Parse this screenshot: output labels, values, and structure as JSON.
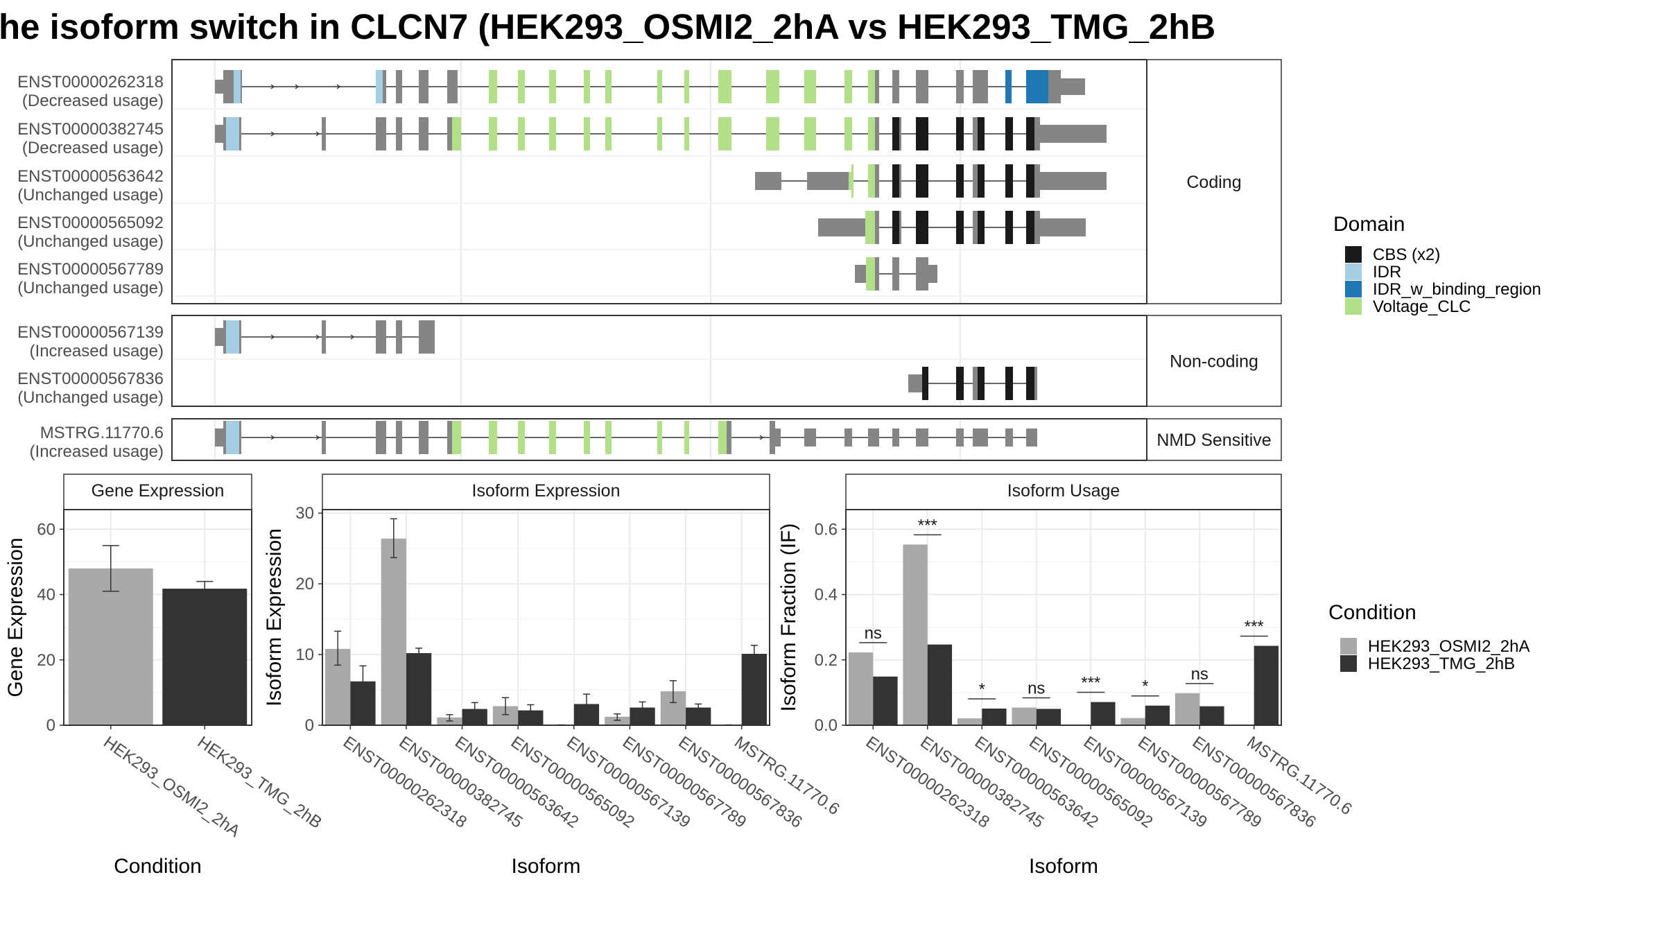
{
  "title": "he isoform switch in CLCN7 (HEK293_OSMI2_2hA vs HEK293_TMG_2hB",
  "colors": {
    "cond_a": "#a9a9a9",
    "cond_b": "#333333",
    "exon": "#858585",
    "strip_bg": "#ffffff",
    "panel_border": "#333333",
    "grid": "#ebebeb"
  },
  "structure": {
    "groups": [
      {
        "label": "Coding",
        "isoforms": [
          {
            "id": "ENST00000262318",
            "usage": "(Decreased usage)",
            "track": "t262318"
          },
          {
            "id": "ENST00000382745",
            "usage": "(Decreased usage)",
            "track": "t382745"
          },
          {
            "id": "ENST00000563642",
            "usage": "(Unchanged usage)",
            "track": "t563642"
          },
          {
            "id": "ENST00000565092",
            "usage": "(Unchanged usage)",
            "track": "t565092"
          },
          {
            "id": "ENST00000567789",
            "usage": "(Unchanged usage)",
            "track": "t567789"
          }
        ]
      },
      {
        "label": "Non-coding",
        "isoforms": [
          {
            "id": "ENST00000567139",
            "usage": "(Increased usage)",
            "track": "t567139"
          },
          {
            "id": "ENST00000567836",
            "usage": "(Unchanged usage)",
            "track": "t567836"
          }
        ]
      },
      {
        "label": "NMD Sensitive",
        "isoforms": [
          {
            "id": "MSTRG.11770.6",
            "usage": "(Increased usage)",
            "track": "tMSTRG"
          }
        ]
      }
    ]
  },
  "legend_domain": {
    "title": "Domain",
    "items": [
      {
        "label": "CBS (x2)",
        "color": "#1a1a1a"
      },
      {
        "label": "IDR",
        "color": "#a6cee3"
      },
      {
        "label": "IDR_w_binding_region",
        "color": "#1f78b4"
      },
      {
        "label": "Voltage_CLC",
        "color": "#b2df8a"
      }
    ]
  },
  "legend_condition": {
    "title": "Condition",
    "items": [
      {
        "label": "HEK293_OSMI2_2hA",
        "color": "#a9a9a9"
      },
      {
        "label": "HEK293_TMG_2hB",
        "color": "#333333"
      }
    ]
  },
  "chart_data": [
    {
      "type": "bar",
      "title": "Gene Expression",
      "xlabel": "Condition",
      "ylabel": "Gene Expression",
      "ylim": [
        0,
        66
      ],
      "yticks": [
        0,
        20,
        40,
        60
      ],
      "categories": [
        "HEK293_OSMI2_2hA",
        "HEK293_TMG_2hB"
      ],
      "values": [
        48,
        41.8
      ],
      "errors": [
        [
          41,
          55
        ],
        [
          39.5,
          44
        ]
      ],
      "colors": [
        "#a9a9a9",
        "#333333"
      ]
    },
    {
      "type": "bar",
      "title": "Isoform Expression",
      "xlabel": "Isoform",
      "ylabel": "Isoform Expression",
      "ylim": [
        0,
        30.5
      ],
      "yticks": [
        0,
        10,
        20,
        30
      ],
      "categories": [
        "ENST00000262318",
        "ENST00000382745",
        "ENST00000563642",
        "ENST00000565092",
        "ENST00000567139",
        "ENST00000567789",
        "ENST00000567836",
        "MSTRG.11770.6"
      ],
      "series": [
        {
          "name": "HEK293_OSMI2_2hA",
          "values": [
            10.8,
            26.4,
            1.1,
            2.7,
            0.02,
            1.2,
            4.8,
            0.02
          ],
          "errors": [
            [
              8.5,
              13.3
            ],
            [
              23.7,
              29.2
            ],
            [
              0.6,
              1.5
            ],
            [
              1.5,
              3.9
            ],
            [
              0.0,
              0.05
            ],
            [
              0.7,
              1.6
            ],
            [
              3.2,
              6.3
            ],
            [
              0.0,
              0.05
            ]
          ]
        },
        {
          "name": "HEK293_TMG_2hB",
          "values": [
            6.2,
            10.2,
            2.3,
            2.1,
            3.0,
            2.5,
            2.5,
            10.1
          ],
          "errors": [
            [
              4.1,
              8.4
            ],
            [
              9.5,
              10.9
            ],
            [
              1.4,
              3.2
            ],
            [
              1.4,
              2.9
            ],
            [
              1.6,
              4.4
            ],
            [
              1.7,
              3.3
            ],
            [
              2.0,
              3.0
            ],
            [
              9.0,
              11.3
            ]
          ]
        }
      ]
    },
    {
      "type": "bar",
      "title": "Isoform Usage",
      "xlabel": "Isoform",
      "ylabel": "Isoform Fraction (IF)",
      "ylim": [
        0,
        0.66
      ],
      "yticks": [
        0.0,
        0.2,
        0.4,
        0.6
      ],
      "yticklabels": [
        "0.0",
        "0.2",
        "0.4",
        "0.6"
      ],
      "categories": [
        "ENST00000262318",
        "ENST00000382745",
        "ENST00000563642",
        "ENST00000565092",
        "ENST00000567139",
        "ENST00000567789",
        "ENST00000567836",
        "MSTRG.11770.6"
      ],
      "series": [
        {
          "name": "HEK293_OSMI2_2hA",
          "values": [
            0.223,
            0.553,
            0.021,
            0.054,
            0.0,
            0.022,
            0.098,
            0.0
          ]
        },
        {
          "name": "HEK293_TMG_2hB",
          "values": [
            0.149,
            0.247,
            0.051,
            0.05,
            0.071,
            0.06,
            0.058,
            0.243
          ]
        }
      ],
      "significance": [
        "ns",
        "***",
        "*",
        "ns",
        "***",
        "*",
        "ns",
        "***"
      ]
    }
  ]
}
